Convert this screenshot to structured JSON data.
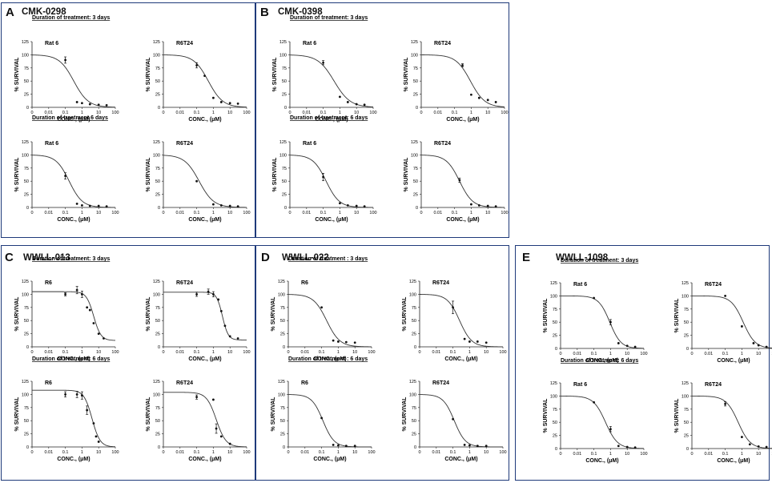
{
  "panels": [
    {
      "letter": "A",
      "compound": "CMK-0298",
      "dur_top": "Duration of treatment: 3 days",
      "dur_bottom": "Duration of treatment 6 days"
    },
    {
      "letter": "B",
      "compound": "CMK-0398",
      "dur_top": "Duration of treatment: 3 days",
      "dur_bottom": "Duration of treatment: 6 days"
    },
    {
      "letter": "C",
      "compound": "WWLL-013",
      "dur_top": "Duration of treatment: 3 days",
      "dur_bottom": "Duration of treatment: 6 days"
    },
    {
      "letter": "D",
      "compound": "WWLL-022",
      "dur_top": "Duration of treatment : 3 days",
      "dur_bottom": "Duration of treatment : 6 days"
    },
    {
      "letter": "E",
      "compound": "WWLL-1098",
      "dur_top": "Duration of treatment: 3 days",
      "dur_bottom": "Duration of treatment: 6 days"
    }
  ],
  "axis": {
    "ylabel": "% SURVIVAL",
    "xlabel": "CONC., (μM)",
    "yticks": [
      "0",
      "25",
      "50",
      "75",
      "100",
      "125"
    ],
    "xticks": [
      "0",
      "0.01",
      "0.1",
      "1",
      "10",
      "100"
    ]
  },
  "chart_data": [
    {
      "panel": "A",
      "row": "3 days",
      "title": "Rat 6",
      "type": "line",
      "ic50": 0.32,
      "hill": 1.0,
      "xmax": 100,
      "points": [
        {
          "x": 0.1,
          "y": 90,
          "err": 6
        },
        {
          "x": 0.5,
          "y": 10
        },
        {
          "x": 1,
          "y": 8
        },
        {
          "x": 3,
          "y": 6
        },
        {
          "x": 10,
          "y": 5
        },
        {
          "x": 30,
          "y": 4
        }
      ]
    },
    {
      "panel": "A",
      "row": "3 days",
      "title": "R6T24",
      "type": "line",
      "ic50": 0.5,
      "hill": 1.0,
      "xmax": 100,
      "points": [
        {
          "x": 0.1,
          "y": 80,
          "err": 5
        },
        {
          "x": 0.3,
          "y": 60
        },
        {
          "x": 1,
          "y": 18
        },
        {
          "x": 3,
          "y": 10
        },
        {
          "x": 10,
          "y": 8
        },
        {
          "x": 30,
          "y": 7
        }
      ]
    },
    {
      "panel": "A",
      "row": "6 days",
      "title": "Rat 6",
      "type": "line",
      "ic50": 0.17,
      "hill": 1.1,
      "xmax": 100,
      "points": [
        {
          "x": 0.1,
          "y": 60,
          "err": 6
        },
        {
          "x": 0.5,
          "y": 7
        },
        {
          "x": 1,
          "y": 4
        },
        {
          "x": 3,
          "y": 3
        },
        {
          "x": 10,
          "y": 3
        },
        {
          "x": 30,
          "y": 2
        }
      ]
    },
    {
      "panel": "A",
      "row": "6 days",
      "title": "R6T24",
      "type": "line",
      "ic50": 0.14,
      "hill": 1.0,
      "xmax": 100,
      "points": [
        {
          "x": 0.1,
          "y": 50
        },
        {
          "x": 1,
          "y": 6
        },
        {
          "x": 3,
          "y": 4
        },
        {
          "x": 10,
          "y": 3
        },
        {
          "x": 30,
          "y": 2
        }
      ]
    },
    {
      "panel": "B",
      "row": "3 days",
      "title": "Rat 6",
      "type": "line",
      "ic50": 0.45,
      "hill": 0.9,
      "xmax": 100,
      "points": [
        {
          "x": 0.1,
          "y": 85,
          "err": 4
        },
        {
          "x": 1,
          "y": 20
        },
        {
          "x": 3,
          "y": 10
        },
        {
          "x": 10,
          "y": 6
        },
        {
          "x": 30,
          "y": 5
        }
      ]
    },
    {
      "panel": "B",
      "row": "3 days",
      "title": "R6T24",
      "type": "line",
      "ic50": 0.9,
      "hill": 1.0,
      "xmax": 100,
      "points": [
        {
          "x": 0.3,
          "y": 80,
          "err": 3
        },
        {
          "x": 1,
          "y": 24
        },
        {
          "x": 3,
          "y": 18
        },
        {
          "x": 10,
          "y": 14
        },
        {
          "x": 30,
          "y": 10
        }
      ]
    },
    {
      "panel": "B",
      "row": "6 days",
      "title": "Rat 6",
      "type": "line",
      "ic50": 0.15,
      "hill": 1.1,
      "xmax": 100,
      "points": [
        {
          "x": 0.1,
          "y": 58,
          "err": 7
        },
        {
          "x": 1,
          "y": 8
        },
        {
          "x": 3,
          "y": 4
        },
        {
          "x": 10,
          "y": 3
        },
        {
          "x": 30,
          "y": 2
        }
      ]
    },
    {
      "panel": "B",
      "row": "6 days",
      "title": "R6T24",
      "type": "line",
      "ic50": 0.2,
      "hill": 1.1,
      "xmax": 100,
      "points": [
        {
          "x": 0.2,
          "y": 52,
          "err": 4
        },
        {
          "x": 1,
          "y": 6
        },
        {
          "x": 3,
          "y": 4
        },
        {
          "x": 10,
          "y": 3
        },
        {
          "x": 30,
          "y": 2
        }
      ]
    },
    {
      "panel": "C",
      "row": "3 days",
      "title": "R6",
      "type": "line",
      "ic50": 5,
      "hill": 2.0,
      "top": 105,
      "bottom": 12,
      "xmax": 100,
      "points": [
        {
          "x": 0.1,
          "y": 100,
          "err": 3
        },
        {
          "x": 0.5,
          "y": 108,
          "err": 7
        },
        {
          "x": 1,
          "y": 100,
          "err": 6
        },
        {
          "x": 2,
          "y": 75
        },
        {
          "x": 3,
          "y": 70
        },
        {
          "x": 5,
          "y": 45
        },
        {
          "x": 10,
          "y": 25
        },
        {
          "x": 20,
          "y": 16
        }
      ]
    },
    {
      "panel": "C",
      "row": "3 days",
      "title": "R6T24",
      "type": "line",
      "ic50": 3.5,
      "hill": 2.5,
      "top": 104,
      "bottom": 13,
      "xmax": 100,
      "points": [
        {
          "x": 0.1,
          "y": 100,
          "err": 4
        },
        {
          "x": 0.5,
          "y": 105,
          "err": 5
        },
        {
          "x": 1,
          "y": 100,
          "err": 5
        },
        {
          "x": 2,
          "y": 90
        },
        {
          "x": 3,
          "y": 68
        },
        {
          "x": 5,
          "y": 40
        },
        {
          "x": 10,
          "y": 20
        },
        {
          "x": 30,
          "y": 16
        }
      ]
    },
    {
      "panel": "C",
      "row": "6 days",
      "title": "R6",
      "type": "line",
      "ic50": 4,
      "hill": 1.8,
      "top": 108,
      "bottom": 0,
      "xmax": 100,
      "points": [
        {
          "x": 0.1,
          "y": 100,
          "err": 5
        },
        {
          "x": 0.5,
          "y": 100,
          "err": 6
        },
        {
          "x": 1,
          "y": 98,
          "err": 7
        },
        {
          "x": 2,
          "y": 70,
          "err": 8
        },
        {
          "x": 5,
          "y": 45
        },
        {
          "x": 7,
          "y": 20
        },
        {
          "x": 10,
          "y": 10
        }
      ]
    },
    {
      "panel": "C",
      "row": "6 days",
      "title": "R6T24",
      "type": "line",
      "ic50": 1.5,
      "hill": 1.5,
      "top": 104,
      "bottom": 0,
      "xmax": 100,
      "points": [
        {
          "x": 0.1,
          "y": 95,
          "err": 4
        },
        {
          "x": 1,
          "y": 90
        },
        {
          "x": 1.5,
          "y": 35,
          "err": 9
        },
        {
          "x": 3,
          "y": 20
        },
        {
          "x": 10,
          "y": 6
        }
      ]
    },
    {
      "panel": "D",
      "row": "3 days",
      "title": "R6",
      "type": "line",
      "ic50": 0.2,
      "hill": 1.1,
      "xmax": 100,
      "points": [
        {
          "x": 0.1,
          "y": 75
        },
        {
          "x": 0.5,
          "y": 12
        },
        {
          "x": 1,
          "y": 10
        },
        {
          "x": 3,
          "y": 9
        },
        {
          "x": 10,
          "y": 8
        }
      ]
    },
    {
      "panel": "D",
      "row": "3 days",
      "title": "R6T24",
      "type": "line",
      "ic50": 0.25,
      "hill": 1.2,
      "xmax": 100,
      "points": [
        {
          "x": 0.1,
          "y": 75,
          "err": 12
        },
        {
          "x": 0.5,
          "y": 15
        },
        {
          "x": 1,
          "y": 10
        },
        {
          "x": 3,
          "y": 10
        },
        {
          "x": 10,
          "y": 8
        }
      ]
    },
    {
      "panel": "D",
      "row": "6 days",
      "title": "R6",
      "type": "line",
      "ic50": 0.12,
      "hill": 1.3,
      "xmax": 100,
      "points": [
        {
          "x": 0.1,
          "y": 55
        },
        {
          "x": 0.5,
          "y": 4
        },
        {
          "x": 1,
          "y": 3
        },
        {
          "x": 3,
          "y": 2
        },
        {
          "x": 10,
          "y": 2
        }
      ]
    },
    {
      "panel": "D",
      "row": "6 days",
      "title": "R6T24",
      "type": "line",
      "ic50": 0.12,
      "hill": 1.3,
      "xmax": 100,
      "points": [
        {
          "x": 0.1,
          "y": 53
        },
        {
          "x": 0.5,
          "y": 4
        },
        {
          "x": 1,
          "y": 3
        },
        {
          "x": 3,
          "y": 2
        },
        {
          "x": 10,
          "y": 2
        }
      ]
    },
    {
      "panel": "E",
      "row": "3 days",
      "title": "Rat 6",
      "type": "line",
      "ic50": 0.9,
      "hill": 1.3,
      "xmax": 100,
      "points": [
        {
          "x": 0.1,
          "y": 96
        },
        {
          "x": 1,
          "y": 50,
          "err": 5
        },
        {
          "x": 3,
          "y": 10
        },
        {
          "x": 10,
          "y": 5
        },
        {
          "x": 30,
          "y": 3
        }
      ]
    },
    {
      "panel": "E",
      "row": "3 days",
      "title": "R6T24",
      "type": "line",
      "ic50": 1.2,
      "hill": 1.2,
      "xmax": 100,
      "points": [
        {
          "x": 0.1,
          "y": 100
        },
        {
          "x": 1,
          "y": 42
        },
        {
          "x": 5,
          "y": 10
        },
        {
          "x": 10,
          "y": 6
        },
        {
          "x": 30,
          "y": 3
        }
      ]
    },
    {
      "panel": "E",
      "row": "6 days",
      "title": "Rat 6",
      "type": "line",
      "ic50": 0.5,
      "hill": 1.2,
      "xmax": 100,
      "points": [
        {
          "x": 0.1,
          "y": 88
        },
        {
          "x": 1,
          "y": 37,
          "err": 5
        },
        {
          "x": 3,
          "y": 5
        },
        {
          "x": 10,
          "y": 3
        },
        {
          "x": 30,
          "y": 2
        }
      ]
    },
    {
      "panel": "E",
      "row": "6 days",
      "title": "R6T24",
      "type": "line",
      "ic50": 0.6,
      "hill": 1.2,
      "xmax": 100,
      "points": [
        {
          "x": 0.1,
          "y": 85,
          "err": 4
        },
        {
          "x": 1,
          "y": 22
        },
        {
          "x": 3,
          "y": 8
        },
        {
          "x": 10,
          "y": 4
        },
        {
          "x": 30,
          "y": 3
        }
      ]
    }
  ]
}
